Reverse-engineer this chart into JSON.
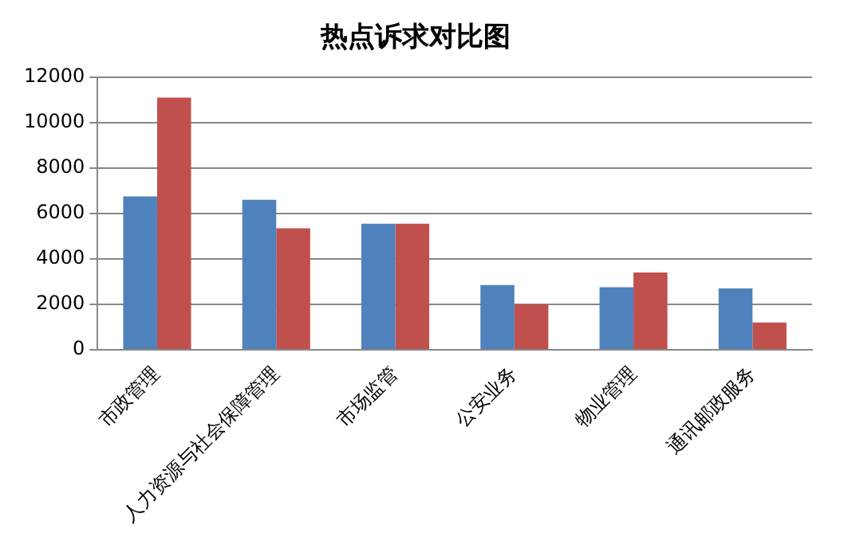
{
  "chart_data": {
    "type": "bar",
    "title": "热点诉求对比图",
    "categories": [
      "市政管理",
      "人力资源与社会保障管理",
      "市场监管",
      "公安业务",
      "物业管理",
      "通讯邮政服务"
    ],
    "series": [
      {
        "color": "#4f81bd",
        "values": [
          6750,
          6600,
          5550,
          2850,
          2750,
          2700
        ]
      },
      {
        "color": "#c0504d",
        "values": [
          11100,
          5350,
          5550,
          2000,
          3400,
          1200
        ]
      }
    ],
    "ylim": [
      0,
      12000
    ],
    "yticks": [
      0,
      2000,
      4000,
      6000,
      8000,
      10000,
      12000
    ],
    "grid": "y",
    "legend": false
  }
}
